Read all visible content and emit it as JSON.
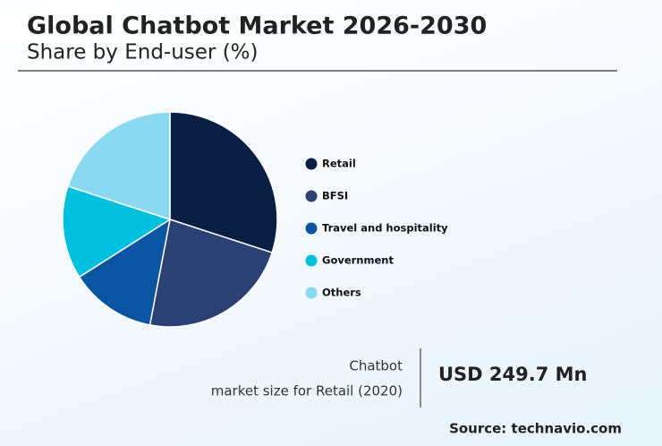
{
  "chart_data": {
    "type": "pie",
    "title": "Global Chatbot Market 2026-2030",
    "subtitle": "Share by End-user (%)",
    "categories": [
      "Retail",
      "BFSI",
      "Travel and hospitality",
      "Government",
      "Others"
    ],
    "values": [
      30,
      23,
      13,
      14,
      20
    ],
    "colors": [
      "#0a1f44",
      "#2b4174",
      "#0a55a3",
      "#00c0e0",
      "#8ad9f0"
    ]
  },
  "callout": {
    "line1": "Chatbot",
    "line2": "market size for Retail (2020)",
    "value": "USD 249.7 Mn"
  },
  "source": "Source: technavio.com"
}
